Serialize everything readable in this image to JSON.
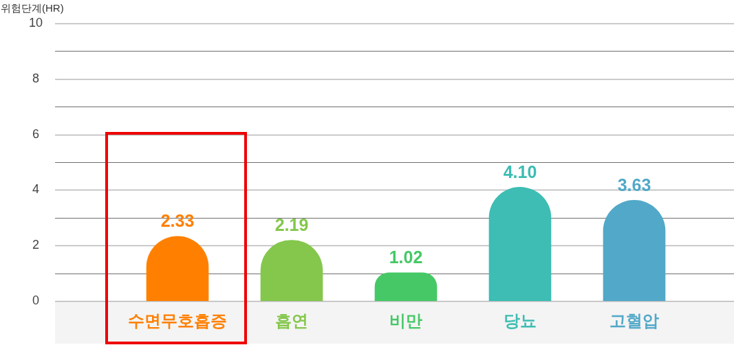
{
  "chart_data": {
    "type": "bar",
    "ylabel": "위험단계(HR)",
    "categories": [
      "수면무호흡증",
      "흡연",
      "비만",
      "당뇨",
      "고혈압"
    ],
    "values": [
      2.33,
      2.19,
      1.02,
      4.1,
      3.63
    ],
    "colors": [
      "#ff8000",
      "#84c74c",
      "#46c866",
      "#3dbdb3",
      "#52a8c8"
    ],
    "value_labels": [
      "2.33",
      "2.19",
      "1.02",
      "4.10",
      "3.63"
    ],
    "ylim": [
      0,
      10
    ],
    "yticks": [
      0,
      {
        "value": 1,
        "label": null
      },
      2,
      {
        "value": 3,
        "label": null
      },
      4,
      {
        "value": 5,
        "label": null
      },
      6,
      {
        "value": 7,
        "label": null
      },
      8,
      {
        "value": 9,
        "label": null
      },
      10
    ],
    "grid": "y"
  }
}
